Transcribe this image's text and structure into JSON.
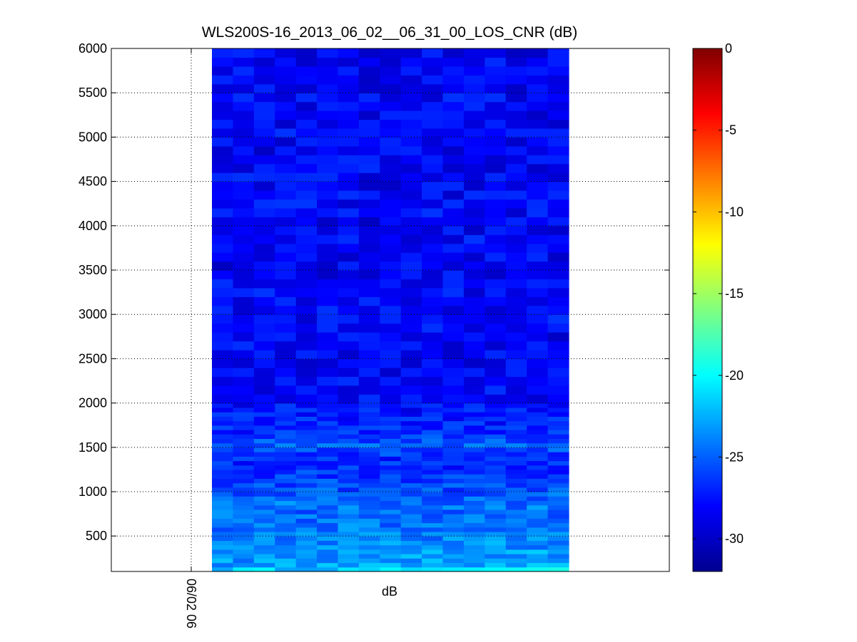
{
  "chart_data": {
    "type": "heatmap",
    "title": "WLS200S-16_2013_06_02__06_31_00_LOS_CNR (dB)",
    "xlabel": "dB",
    "ylabel": "",
    "x_tick_labels": [
      "06/02 06"
    ],
    "y_ticks": [
      500,
      1000,
      1500,
      2000,
      2500,
      3000,
      3500,
      4000,
      4500,
      5000,
      5500,
      6000
    ],
    "ylim": [
      100,
      6000
    ],
    "grid": true,
    "colormap": "jet",
    "colorbar": {
      "label_values": [
        0,
        -5,
        -10,
        -15,
        -20,
        -25,
        -30
      ],
      "range": [
        -32,
        0
      ],
      "colors": [
        "#00008f",
        "#0000ff",
        "#00ffff",
        "#ffff00",
        "#ff0000",
        "#800000"
      ]
    },
    "x_columns": 17,
    "row_heights_m": [
      100,
      150,
      200,
      250,
      300,
      350,
      400,
      450,
      500,
      550,
      600,
      650,
      700,
      750,
      800,
      850,
      900,
      950,
      1000,
      1050,
      1100,
      1150,
      1200,
      1250,
      1300,
      1350,
      1400,
      1450,
      1500,
      1550,
      1600,
      1650,
      1700,
      1750,
      1800,
      1850,
      1900,
      1950,
      2000,
      2100,
      2200,
      2300,
      2400,
      2500,
      2600,
      2700,
      2800,
      2900,
      3000,
      3100,
      3200,
      3300,
      3400,
      3500,
      3600,
      3700,
      3800,
      3900,
      4000,
      4100,
      4200,
      4300,
      4400,
      4500,
      4600,
      4700,
      4800,
      4900,
      5000,
      5100,
      5200,
      5300,
      5400,
      5500,
      5600,
      5700,
      5800,
      5900,
      6000
    ],
    "row_mean_cnr_db": [
      -21.5,
      -23.0,
      -23.3,
      -23.2,
      -23.1,
      -23.4,
      -23.6,
      -23.8,
      -24.0,
      -24.2,
      -24.4,
      -24.5,
      -24.6,
      -24.7,
      -24.3,
      -24.4,
      -24.8,
      -25.2,
      -25.6,
      -25.8,
      -26.0,
      -26.3,
      -26.5,
      -26.8,
      -26.9,
      -27.0,
      -26.2,
      -25.5,
      -25.2,
      -25.7,
      -26.3,
      -26.8,
      -27.0,
      -27.1,
      -27.2,
      -27.3,
      -27.5,
      -27.6,
      -27.8,
      -27.9,
      -28.0,
      -28.0,
      -28.2,
      -28.1,
      -28.0,
      -28.2,
      -28.0,
      -27.9,
      -28.0,
      -27.8,
      -27.9,
      -28.0,
      -28.3,
      -28.4,
      -28.2,
      -28.1,
      -27.9,
      -28.2,
      -28.3,
      -28.0,
      -27.9,
      -28.1,
      -28.2,
      -28.0,
      -28.1,
      -28.2,
      -28.3,
      -28.1,
      -28.0,
      -28.2,
      -28.3,
      -28.1,
      -28.0,
      -28.2,
      -28.3,
      -28.1,
      -28.2,
      -28.3,
      -28.0
    ]
  }
}
